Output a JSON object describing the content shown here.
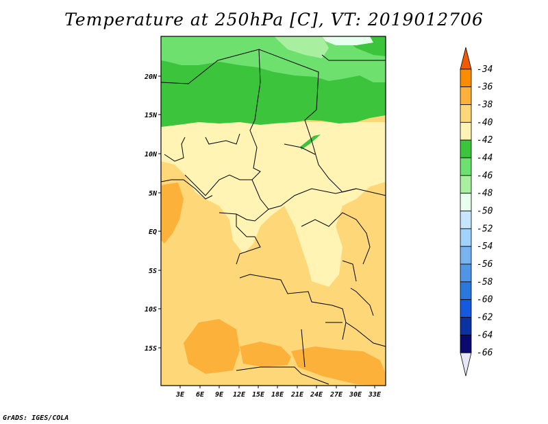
{
  "title": "Temperature at 250hPa [C], VT: 2019012706",
  "credit": "GrADS: IGES/COLA",
  "map": {
    "lon_ticks": [
      "3E",
      "6E",
      "9E",
      "12E",
      "15E",
      "18E",
      "21E",
      "24E",
      "27E",
      "30E",
      "33E"
    ],
    "lat_ticks": [
      "20N",
      "15N",
      "10N",
      "5N",
      "EQ",
      "5S",
      "10S",
      "15S"
    ]
  },
  "colorbar": {
    "labels": [
      "-34",
      "-36",
      "-38",
      "-40",
      "-42",
      "-44",
      "-46",
      "-48",
      "-50",
      "-52",
      "-54",
      "-56",
      "-58",
      "-60",
      "-62",
      "-64",
      "-66"
    ],
    "colors": [
      "#f05a00",
      "#fa8c00",
      "#fcb13a",
      "#fdd778",
      "#fff4b4",
      "#3dc43d",
      "#6ee06e",
      "#a8f0a0",
      "#e8fff0",
      "#c6e6ff",
      "#a0d2fa",
      "#78b4f0",
      "#5096e6",
      "#2b78dc",
      "#145adc",
      "#0a32a0",
      "#0a0a6e"
    ]
  }
}
